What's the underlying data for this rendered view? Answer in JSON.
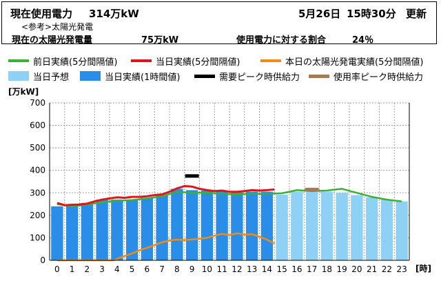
{
  "header": {
    "current_label": "現在使用電力",
    "current_value": "314万kW",
    "date": "5月26日",
    "time": "15時30分",
    "update_label": "更新",
    "reference_label": "<参考>太陽光発電",
    "solar_label": "現在の太陽光発電量",
    "solar_value": "75万kW",
    "ratio_label": "使用電力に対する割合",
    "ratio_value": "24％"
  },
  "legend": [
    {
      "label": "前日実績(5分間隔値)",
      "kind": "line",
      "color": "#3cb035"
    },
    {
      "label": "当日実績(5分間隔値)",
      "kind": "line",
      "color": "#e0151b"
    },
    {
      "label": "本日の太陽光発電実績(5分間隔値)",
      "kind": "line",
      "color": "#f08c14"
    },
    {
      "label": "当日予想",
      "kind": "box",
      "color": "#8fd0f5"
    },
    {
      "label": "当日実績(1時間値)",
      "kind": "box",
      "color": "#2a8ee8"
    },
    {
      "label": "需要ピーク時供給力",
      "kind": "line",
      "color": "#000000"
    },
    {
      "label": "使用率ピーク時供給力",
      "kind": "line",
      "color": "#a57b57"
    }
  ],
  "chart_data": {
    "type": "bar",
    "ylabel": "[万kW]",
    "xlabel": "[時]",
    "ylim": [
      0,
      700
    ],
    "yticks": [
      0,
      100,
      200,
      300,
      400,
      500,
      600,
      700
    ],
    "categories": [
      "0",
      "1",
      "2",
      "3",
      "4",
      "5",
      "6",
      "7",
      "8",
      "9",
      "10",
      "11",
      "12",
      "13",
      "14",
      "15",
      "16",
      "17",
      "18",
      "19",
      "20",
      "21",
      "22",
      "23"
    ],
    "grid": true,
    "series": [
      {
        "name": "当日実績(1時間値)",
        "kind": "bar",
        "color": "#2a8ee8",
        "values": [
          240,
          243,
          255,
          270,
          270,
          270,
          278,
          290,
          318,
          312,
          310,
          306,
          302,
          305,
          305,
          null,
          null,
          null,
          null,
          null,
          null,
          null,
          null,
          null
        ]
      },
      {
        "name": "当日予想",
        "kind": "bar",
        "color": "#8fd0f5",
        "values": [
          null,
          null,
          null,
          null,
          null,
          null,
          null,
          null,
          null,
          null,
          null,
          null,
          null,
          null,
          null,
          292,
          305,
          308,
          305,
          300,
          290,
          280,
          270,
          262
        ]
      },
      {
        "name": "前日実績(5分間隔値)",
        "kind": "line",
        "color": "#3cb035",
        "x": [
          0,
          1,
          2,
          3,
          4,
          5,
          6,
          7,
          8,
          9,
          10,
          11,
          12,
          13,
          14,
          15,
          16,
          17,
          18,
          19,
          20,
          21,
          22,
          23
        ],
        "values": [
          250,
          240,
          248,
          258,
          265,
          268,
          275,
          285,
          305,
          300,
          300,
          296,
          293,
          296,
          295,
          298,
          312,
          308,
          310,
          318,
          300,
          282,
          270,
          262
        ]
      },
      {
        "name": "当日実績(5分間隔値)",
        "kind": "line",
        "color": "#e0151b",
        "x": [
          0,
          0.5,
          1,
          1.5,
          2,
          2.5,
          3,
          3.5,
          4,
          4.5,
          5,
          5.5,
          6,
          6.5,
          7,
          7.5,
          8,
          8.5,
          9,
          9.5,
          10,
          10.5,
          11,
          11.5,
          12,
          12.5,
          13,
          13.5,
          14,
          14.5
        ],
        "values": [
          255,
          245,
          247,
          248,
          252,
          262,
          270,
          275,
          280,
          278,
          282,
          282,
          285,
          290,
          293,
          305,
          320,
          330,
          328,
          318,
          312,
          308,
          310,
          305,
          305,
          308,
          312,
          310,
          312,
          315
        ]
      },
      {
        "name": "本日の太陽光発電実績(5分間隔値)",
        "kind": "line",
        "color": "#f08c14",
        "x": [
          0,
          1,
          2,
          3,
          3.8,
          4.2,
          5,
          5.5,
          6,
          6.5,
          7,
          7.5,
          8,
          8.5,
          9,
          9.5,
          10,
          10.5,
          11,
          11.5,
          12,
          12.5,
          13,
          13.5,
          14,
          14.5
        ],
        "values": [
          0,
          0,
          0,
          0,
          0,
          12,
          30,
          45,
          55,
          68,
          80,
          88,
          92,
          90,
          93,
          96,
          100,
          110,
          118,
          112,
          120,
          114,
          116,
          105,
          92,
          75
        ]
      }
    ],
    "markers": [
      {
        "name": "需要ピーク時供給力",
        "x": 9,
        "y": 375,
        "color": "#000000"
      },
      {
        "name": "使用率ピーク時供給力",
        "x": 17,
        "y": 315,
        "color": "#a57b57"
      }
    ]
  }
}
